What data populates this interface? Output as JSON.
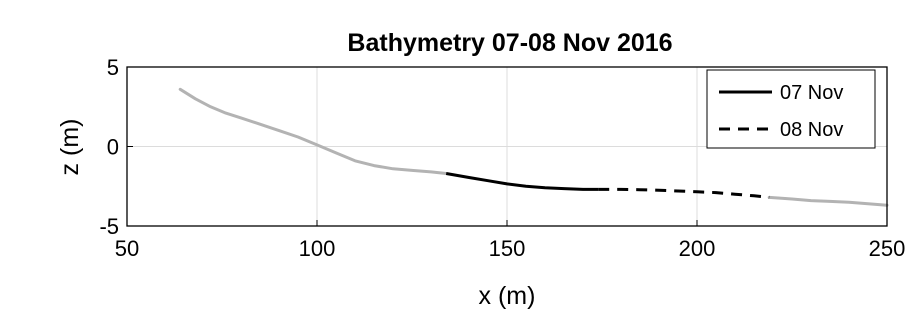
{
  "chart_data": {
    "type": "line",
    "title": "Bathymetry 07-08 Nov 2016",
    "xlabel": "x (m)",
    "ylabel": "z (m)",
    "xlim": [
      50,
      250
    ],
    "ylim": [
      -5,
      5
    ],
    "xticks": [
      50,
      100,
      150,
      200,
      250
    ],
    "yticks": [
      -5,
      0,
      5
    ],
    "grid": true,
    "legend_position": "top-right",
    "colors": {
      "profile": "#b3b3b3",
      "nov07": "#000000",
      "nov08": "#000000"
    },
    "profile": {
      "x": [
        64,
        68,
        72,
        76,
        80,
        85,
        90,
        95,
        100,
        105,
        110,
        115,
        120,
        125,
        130,
        134
      ],
      "y": [
        3.6,
        3.0,
        2.5,
        2.1,
        1.8,
        1.4,
        1.0,
        0.6,
        0.1,
        -0.4,
        -0.9,
        -1.2,
        -1.4,
        -1.5,
        -1.6,
        -1.7
      ]
    },
    "profile_offshore": {
      "x": [
        219,
        225,
        230,
        235,
        240,
        245,
        250
      ],
      "y": [
        -3.2,
        -3.3,
        -3.4,
        -3.45,
        -3.5,
        -3.6,
        -3.7
      ]
    },
    "series": [
      {
        "name": "07 Nov",
        "style": "solid",
        "x": [
          134,
          140,
          145,
          150,
          155,
          160,
          165,
          170,
          174
        ],
        "y": [
          -1.7,
          -1.95,
          -2.15,
          -2.35,
          -2.5,
          -2.6,
          -2.65,
          -2.7,
          -2.7
        ]
      },
      {
        "name": "08 Nov",
        "style": "dashed",
        "x": [
          174,
          180,
          185,
          190,
          195,
          200,
          205,
          210,
          215,
          219
        ],
        "y": [
          -2.7,
          -2.7,
          -2.72,
          -2.75,
          -2.8,
          -2.85,
          -2.9,
          -3.0,
          -3.1,
          -3.2
        ]
      }
    ]
  }
}
